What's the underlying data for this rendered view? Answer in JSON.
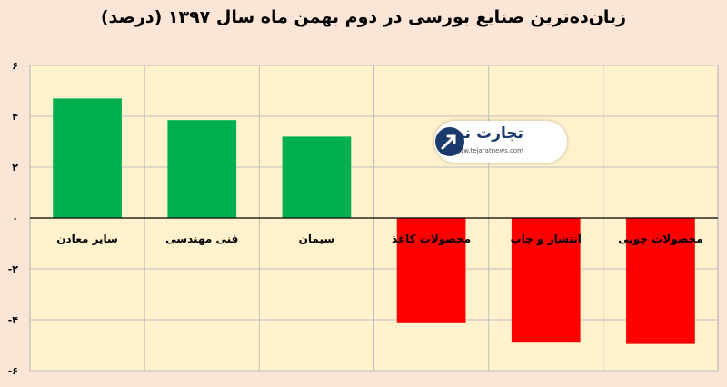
{
  "title": "زیان‌ده‌ترین صنایع بورسی در دوم بهمن ماه سال ۱۳۹۷ (درصد)",
  "watermark": {
    "brand": "تجارت نیوز",
    "url": "www.tejaratnews.com"
  },
  "colors": {
    "positive": "#00b050",
    "negative": "#ff0000",
    "plot_bg": "#fff2cc",
    "page_bg": "#fbe5d6"
  },
  "chart_data": {
    "type": "bar",
    "title": "زیان‌ده‌ترین صنایع بورسی در دوم بهمن ماه سال ۱۳۹۷ (درصد)",
    "categories": [
      "سایر معادن",
      "فنی مهندسی",
      "سیمان",
      "محصولات کاغذ",
      "انتشار و چاپ",
      "محصولات چوبی"
    ],
    "values": [
      4.7,
      3.85,
      3.2,
      -4.1,
      -4.9,
      -4.95
    ],
    "ylim": [
      -6,
      6
    ],
    "yticks": [
      6,
      4,
      2,
      0,
      -2,
      -4,
      -6
    ],
    "ytick_labels": [
      "۶",
      "۴",
      "۲",
      "۰",
      "-۲",
      "-۴",
      "-۶"
    ],
    "grid": true,
    "xlabel": "",
    "ylabel": ""
  }
}
